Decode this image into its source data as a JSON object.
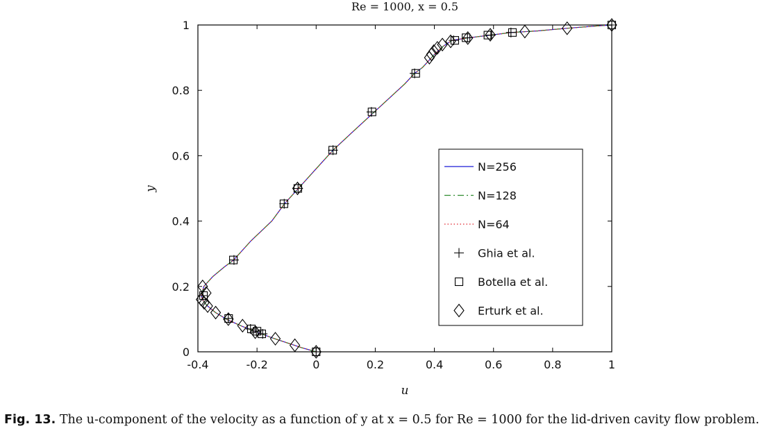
{
  "chart_data": {
    "type": "line",
    "title": "Re = 1000, x = 0.5",
    "xlabel": "u",
    "ylabel": "y",
    "xlim": [
      -0.4,
      1
    ],
    "ylim": [
      0,
      1
    ],
    "xticks": [
      "-0.4",
      "-0.2",
      "0",
      "0.2",
      "0.4",
      "0.6",
      "0.8",
      "1"
    ],
    "xtick_values": [
      -0.4,
      -0.2,
      0,
      0.2,
      0.4,
      0.6,
      0.8,
      1
    ],
    "yticks": [
      "0",
      "0.2",
      "0.4",
      "0.6",
      "0.8",
      "1"
    ],
    "ytick_values": [
      0,
      0.2,
      0.4,
      0.6,
      0.8,
      1
    ],
    "legend_position": "center-right",
    "legend": [
      {
        "label": "N=256",
        "style": "solid",
        "color": "#1a1ad6"
      },
      {
        "label": "N=128",
        "style": "dashdot",
        "color": "#2e8b2e"
      },
      {
        "label": "N=64",
        "style": "dotted",
        "color": "#e0202a"
      },
      {
        "label": "Ghia et al.",
        "marker": "plus"
      },
      {
        "label": "Botella et al.",
        "marker": "square"
      },
      {
        "label": "Erturk et al.",
        "marker": "diamond"
      }
    ],
    "series": [
      {
        "name": "N=256",
        "style": "solid",
        "color": "#1a1ad6",
        "x": [
          0,
          -0.05,
          -0.1,
          -0.15,
          -0.2,
          -0.25,
          -0.3,
          -0.34,
          -0.37,
          -0.385,
          -0.388,
          -0.38,
          -0.35,
          -0.31,
          -0.28,
          -0.22,
          -0.15,
          -0.107,
          -0.06,
          0.0,
          0.057,
          0.12,
          0.18,
          0.24,
          0.3,
          0.333,
          0.36,
          0.38,
          0.4,
          0.43,
          0.46,
          0.51,
          0.58,
          0.66,
          0.75,
          0.85,
          0.95,
          1.0
        ],
        "y": [
          0,
          0.013,
          0.028,
          0.043,
          0.06,
          0.078,
          0.098,
          0.12,
          0.142,
          0.16,
          0.172,
          0.2,
          0.23,
          0.26,
          0.28,
          0.34,
          0.4,
          0.453,
          0.5,
          0.56,
          0.617,
          0.67,
          0.72,
          0.77,
          0.82,
          0.852,
          0.87,
          0.89,
          0.91,
          0.935,
          0.953,
          0.96,
          0.968,
          0.977,
          0.982,
          0.99,
          0.997,
          1.0
        ]
      },
      {
        "name": "N=128",
        "style": "dashdot",
        "color": "#2e8b2e",
        "x": [
          0,
          -0.05,
          -0.1,
          -0.15,
          -0.2,
          -0.25,
          -0.3,
          -0.34,
          -0.37,
          -0.385,
          -0.388,
          -0.38,
          -0.35,
          -0.31,
          -0.28,
          -0.22,
          -0.15,
          -0.107,
          -0.06,
          0.0,
          0.057,
          0.12,
          0.18,
          0.24,
          0.3,
          0.333,
          0.36,
          0.38,
          0.4,
          0.43,
          0.46,
          0.51,
          0.58,
          0.66,
          0.75,
          0.85,
          0.95,
          1.0
        ],
        "y": [
          0,
          0.013,
          0.028,
          0.043,
          0.06,
          0.078,
          0.098,
          0.12,
          0.142,
          0.16,
          0.172,
          0.2,
          0.23,
          0.26,
          0.28,
          0.34,
          0.4,
          0.453,
          0.5,
          0.56,
          0.617,
          0.67,
          0.72,
          0.77,
          0.82,
          0.852,
          0.87,
          0.89,
          0.91,
          0.935,
          0.953,
          0.96,
          0.968,
          0.977,
          0.982,
          0.99,
          0.997,
          1.0
        ]
      },
      {
        "name": "N=64",
        "style": "dotted",
        "color": "#e0202a",
        "x": [
          0,
          -0.05,
          -0.1,
          -0.15,
          -0.2,
          -0.25,
          -0.3,
          -0.34,
          -0.37,
          -0.385,
          -0.388,
          -0.38,
          -0.35,
          -0.31,
          -0.28,
          -0.22,
          -0.15,
          -0.107,
          -0.06,
          0.0,
          0.057,
          0.12,
          0.18,
          0.24,
          0.3,
          0.333,
          0.36,
          0.38,
          0.4,
          0.43,
          0.46,
          0.51,
          0.58,
          0.66,
          0.75,
          0.85,
          0.95,
          1.0
        ],
        "y": [
          0,
          0.013,
          0.028,
          0.043,
          0.06,
          0.078,
          0.098,
          0.12,
          0.142,
          0.16,
          0.172,
          0.2,
          0.23,
          0.26,
          0.28,
          0.34,
          0.4,
          0.453,
          0.5,
          0.56,
          0.617,
          0.67,
          0.72,
          0.77,
          0.82,
          0.852,
          0.87,
          0.89,
          0.91,
          0.935,
          0.953,
          0.96,
          0.968,
          0.977,
          0.982,
          0.99,
          0.997,
          1.0
        ]
      },
      {
        "name": "Ghia et al.",
        "marker": "plus",
        "x": [
          1.0,
          0.659,
          0.591,
          0.512,
          0.465,
          0.333,
          0.187,
          0.057,
          -0.061,
          -0.108,
          -0.278,
          -0.383,
          -0.297,
          -0.222,
          -0.202,
          -0.181,
          0.0
        ],
        "y": [
          1.0,
          0.977,
          0.969,
          0.961,
          0.953,
          0.852,
          0.734,
          0.617,
          0.5,
          0.453,
          0.281,
          0.172,
          0.102,
          0.07,
          0.063,
          0.055,
          0.0
        ]
      },
      {
        "name": "Botella et al.",
        "marker": "square",
        "x": [
          1.0,
          0.664,
          0.581,
          0.507,
          0.469,
          0.337,
          0.189,
          0.056,
          -0.062,
          -0.109,
          -0.28,
          -0.381,
          -0.296,
          -0.219,
          -0.2,
          -0.184,
          0.0
        ],
        "y": [
          1.0,
          0.977,
          0.969,
          0.961,
          0.953,
          0.852,
          0.734,
          0.617,
          0.5,
          0.453,
          0.281,
          0.172,
          0.102,
          0.07,
          0.063,
          0.055,
          0.0
        ]
      },
      {
        "name": "Erturk et al.",
        "marker": "diamond",
        "x": [
          1.0,
          0.849,
          0.706,
          0.589,
          0.513,
          0.455,
          0.427,
          0.41,
          0.398,
          0.39,
          0.383,
          -0.063,
          -0.384,
          -0.372,
          -0.389,
          -0.379,
          -0.367,
          -0.34,
          -0.297,
          -0.249,
          -0.206,
          -0.138,
          -0.072,
          0.0
        ],
        "y": [
          1.0,
          0.99,
          0.98,
          0.97,
          0.96,
          0.95,
          0.94,
          0.93,
          0.92,
          0.91,
          0.9,
          0.5,
          0.2,
          0.18,
          0.16,
          0.15,
          0.14,
          0.12,
          0.1,
          0.08,
          0.06,
          0.04,
          0.02,
          0.0
        ]
      }
    ]
  },
  "caption": {
    "label": "Fig. 13.",
    "text": "The u-component of the velocity as a function of y at x = 0.5 for Re = 1000 for the lid-driven cavity flow problem."
  }
}
